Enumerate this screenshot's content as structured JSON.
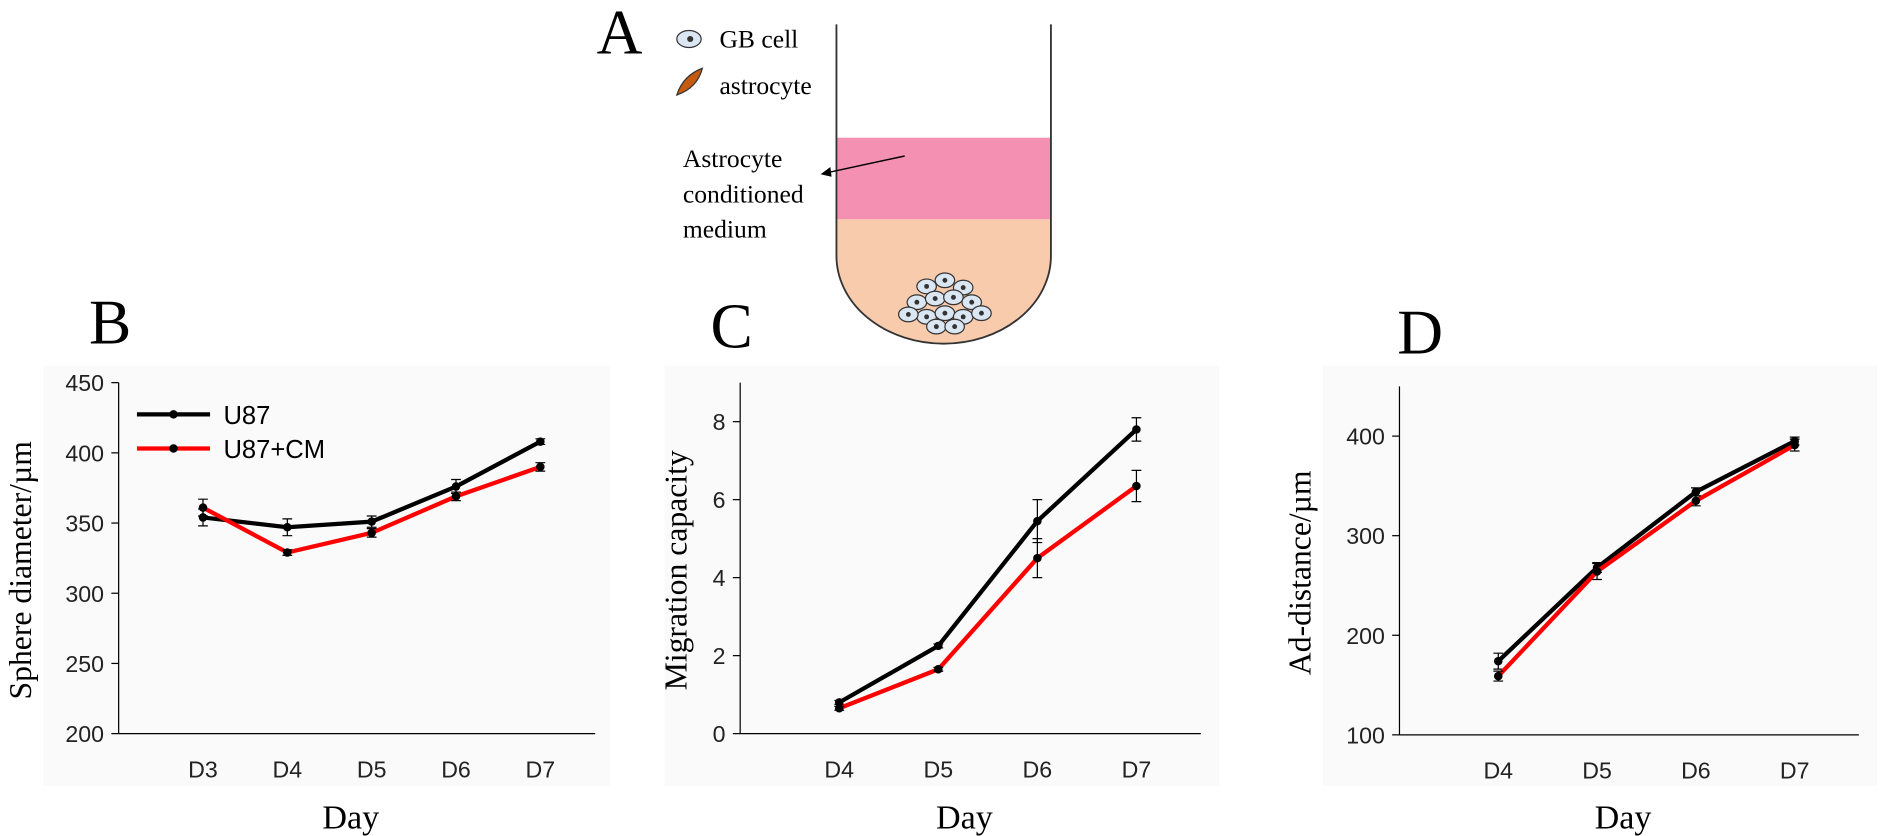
{
  "panel_a": {
    "label": "A",
    "legend": [
      "GB cell",
      "astrocyte"
    ],
    "annotation": [
      "Astrocyte",
      "conditioned",
      "medium"
    ]
  },
  "chart_data": [
    {
      "type": "line",
      "label": "B",
      "y_label": "Sphere diameter/µm",
      "x_label": "Day",
      "categories": [
        "D3",
        "D4",
        "D5",
        "D6",
        "D7"
      ],
      "ylim": [
        200,
        450
      ],
      "yticks": [
        200,
        250,
        300,
        350,
        400,
        450
      ],
      "legend": "upper left",
      "series": [
        {
          "name": "U87",
          "color": "#000000",
          "values": [
            354,
            347,
            351,
            376,
            408
          ],
          "errors": [
            6,
            6,
            4,
            5,
            2
          ]
        },
        {
          "name": "U87+CM",
          "color": "#ff0000",
          "values": [
            361,
            329,
            343,
            369,
            390
          ],
          "errors": [
            6,
            2,
            3,
            3,
            3
          ]
        }
      ]
    },
    {
      "type": "line",
      "label": "C",
      "y_label": "Migration capacity",
      "x_label": "Day",
      "categories": [
        "D4",
        "D5",
        "D6",
        "D7"
      ],
      "ylim": [
        0,
        9
      ],
      "yticks": [
        0,
        2,
        4,
        6,
        8
      ],
      "series": [
        {
          "color": "#000000",
          "values": [
            0.8,
            2.25,
            5.45,
            7.8
          ],
          "errors": [
            0.05,
            0.05,
            0.55,
            0.3
          ]
        },
        {
          "color": "#ff0000",
          "values": [
            0.65,
            1.65,
            4.5,
            6.35
          ],
          "errors": [
            0.05,
            0.05,
            0.5,
            0.4
          ]
        }
      ]
    },
    {
      "type": "line",
      "label": "D",
      "y_label": "Ad-distance/µm",
      "x_label": "Day",
      "categories": [
        "D4",
        "D5",
        "D6",
        "D7"
      ],
      "ylim": [
        100,
        450
      ],
      "yticks": [
        100,
        200,
        300,
        400
      ],
      "series": [
        {
          "color": "#000000",
          "values": [
            174,
            268,
            344,
            395
          ],
          "errors": [
            8,
            5,
            4,
            4
          ]
        },
        {
          "color": "#ff0000",
          "values": [
            159,
            264,
            335,
            391
          ],
          "errors": [
            5,
            8,
            5,
            6
          ]
        }
      ]
    }
  ]
}
